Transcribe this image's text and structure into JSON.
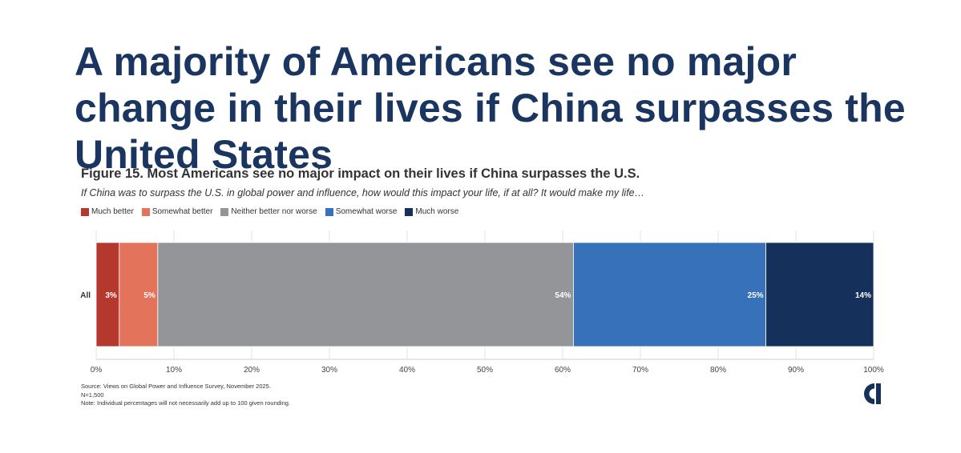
{
  "headline": "A majority of Americans see no major change in their lives if China surpasses the United States",
  "chart_data": {
    "type": "bar",
    "orientation": "horizontal",
    "stacked": true,
    "title": "Figure 15. Most Americans see no major impact on their lives if China surpasses the U.S.",
    "subtitle": "If China was to surpass the U.S. in global power and influence, how would this impact your life, if at all? It would make my life…",
    "categories": [
      "All"
    ],
    "series": [
      {
        "name": "Much better",
        "values": [
          3
        ],
        "label": "3%",
        "color": "#b5382f"
      },
      {
        "name": "Somewhat better",
        "values": [
          5
        ],
        "label": "5%",
        "color": "#e4735b"
      },
      {
        "name": "Neither better nor worse",
        "values": [
          54
        ],
        "label": "54%",
        "color": "#939598"
      },
      {
        "name": "Somewhat worse",
        "values": [
          25
        ],
        "label": "25%",
        "color": "#3771b9"
      },
      {
        "name": "Much worse",
        "values": [
          14
        ],
        "label": "14%",
        "color": "#15305a"
      }
    ],
    "xlim": [
      0,
      100
    ],
    "x_ticks": [
      "0%",
      "10%",
      "20%",
      "30%",
      "40%",
      "50%",
      "60%",
      "70%",
      "80%",
      "90%",
      "100%"
    ],
    "grid": true,
    "legend_position": "top-left"
  },
  "footer": {
    "source": "Source: Views on Global Power and Influence Survey, November 2025.",
    "n": "N=1,500",
    "note": "Note: Individual percentages will not necessarily add up to 100 given rounding."
  },
  "colors": {
    "headline": "#1b3561",
    "logo": "#15305a"
  },
  "logo_icon": "c-logo-icon"
}
